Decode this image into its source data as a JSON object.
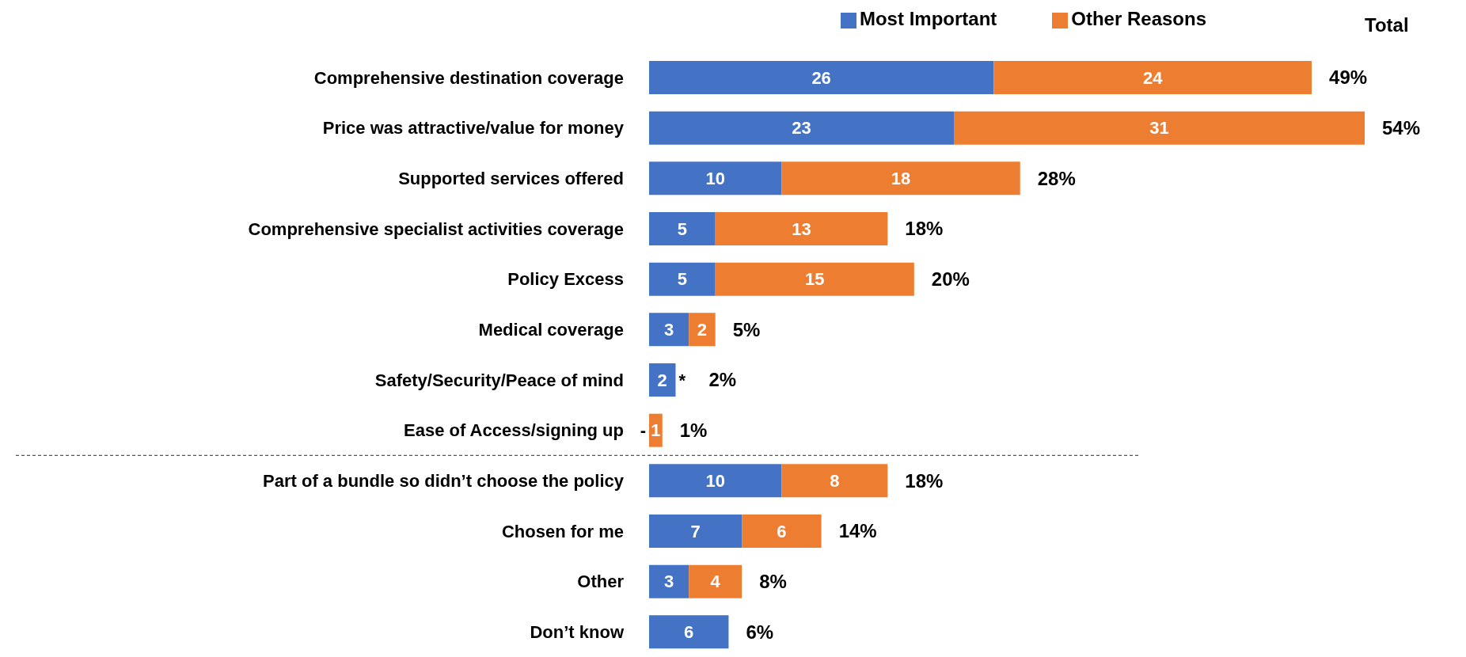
{
  "chart_data": {
    "type": "bar",
    "orientation": "horizontal",
    "stacked": true,
    "legend": "top",
    "categories": [
      "Comprehensive destination coverage",
      "Price was attractive/value for money",
      "Supported services offered",
      "Comprehensive specialist activities coverage",
      "Policy Excess",
      "Medical coverage",
      "Safety/Security/Peace of mind",
      "Ease of Access/signing up",
      "Part of a bundle so didn’t choose the policy",
      "Chosen for me",
      "Other",
      "Don’t know"
    ],
    "series": [
      {
        "name": "Most Important",
        "color": "#4472c4",
        "values": [
          26,
          23,
          10,
          5,
          5,
          3,
          2,
          0,
          10,
          7,
          3,
          6
        ],
        "value_labels": [
          "26",
          "23",
          "10",
          "5",
          "5",
          "3",
          "2",
          "-",
          "10",
          "7",
          "3",
          "6"
        ]
      },
      {
        "name": "Other Reasons",
        "color": "#ed7d31",
        "values": [
          24,
          31,
          18,
          13,
          15,
          2,
          0,
          1,
          8,
          6,
          4,
          null
        ],
        "value_labels": [
          "24",
          "31",
          "18",
          "13",
          "15",
          "2",
          "*",
          "1",
          "8",
          "6",
          "4",
          null
        ]
      }
    ],
    "totals": [
      "49%",
      "54%",
      "28%",
      "18%",
      "20%",
      "5%",
      "2%",
      "1%",
      "18%",
      "14%",
      "8%",
      "6%"
    ],
    "annotations": [
      "Total"
    ]
  }
}
